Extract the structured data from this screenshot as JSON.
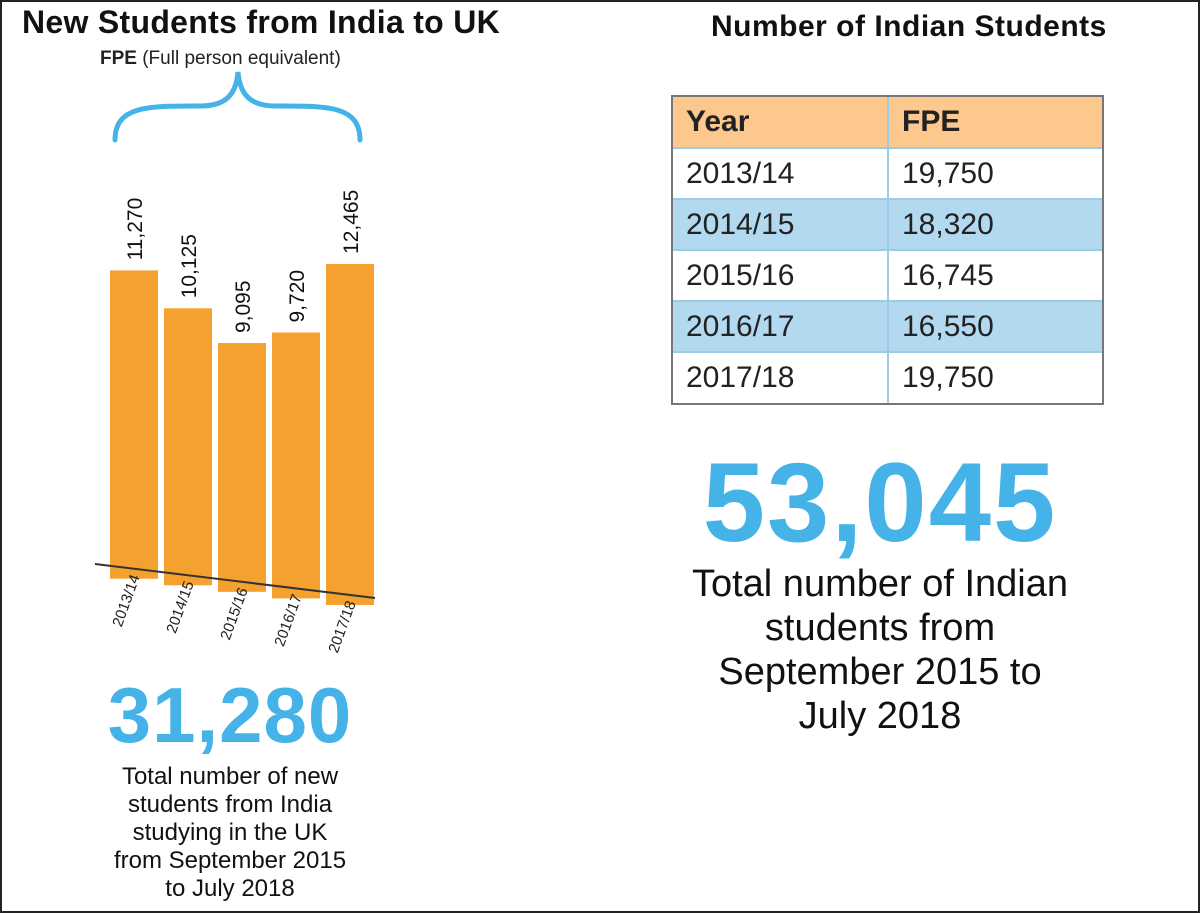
{
  "chart_data": [
    {
      "type": "bar",
      "title": "New Students from India to UK",
      "subtitle_bold": "FPE",
      "subtitle_rest": "(Full person  equivalent)",
      "categories": [
        "2013/14",
        "2014/15",
        "2015/16",
        "2016/17",
        "2017/18"
      ],
      "values": [
        11270,
        10125,
        9095,
        9720,
        12465
      ],
      "value_labels": [
        "11,270",
        "10,125",
        "9,095",
        "9,720",
        "12,465"
      ],
      "bar_color": "#f4a12f",
      "ylim": [
        0,
        12465
      ]
    },
    {
      "type": "table",
      "title": "Number of  Indian Students",
      "columns": [
        "Year",
        "FPE"
      ],
      "rows": [
        [
          "2013/14",
          "19,750"
        ],
        [
          "2014/15",
          "18,320"
        ],
        [
          "2015/16",
          "16,745"
        ],
        [
          "2016/17",
          "16,550"
        ],
        [
          "2017/18",
          "19,750"
        ]
      ],
      "header_color": "#fcc88e",
      "alt_row_color": "#b2d9f0"
    }
  ],
  "left_summary": {
    "number": "31,280",
    "caption": [
      "Total number of new",
      "students from India",
      "studying in the UK",
      "from September 2015",
      "to July 2018"
    ]
  },
  "right_summary": {
    "number": "53,045",
    "caption": [
      "Total number of Indian",
      "students from",
      "September 2015 to",
      "July 2018"
    ]
  },
  "accent_color": "#45b3e7"
}
